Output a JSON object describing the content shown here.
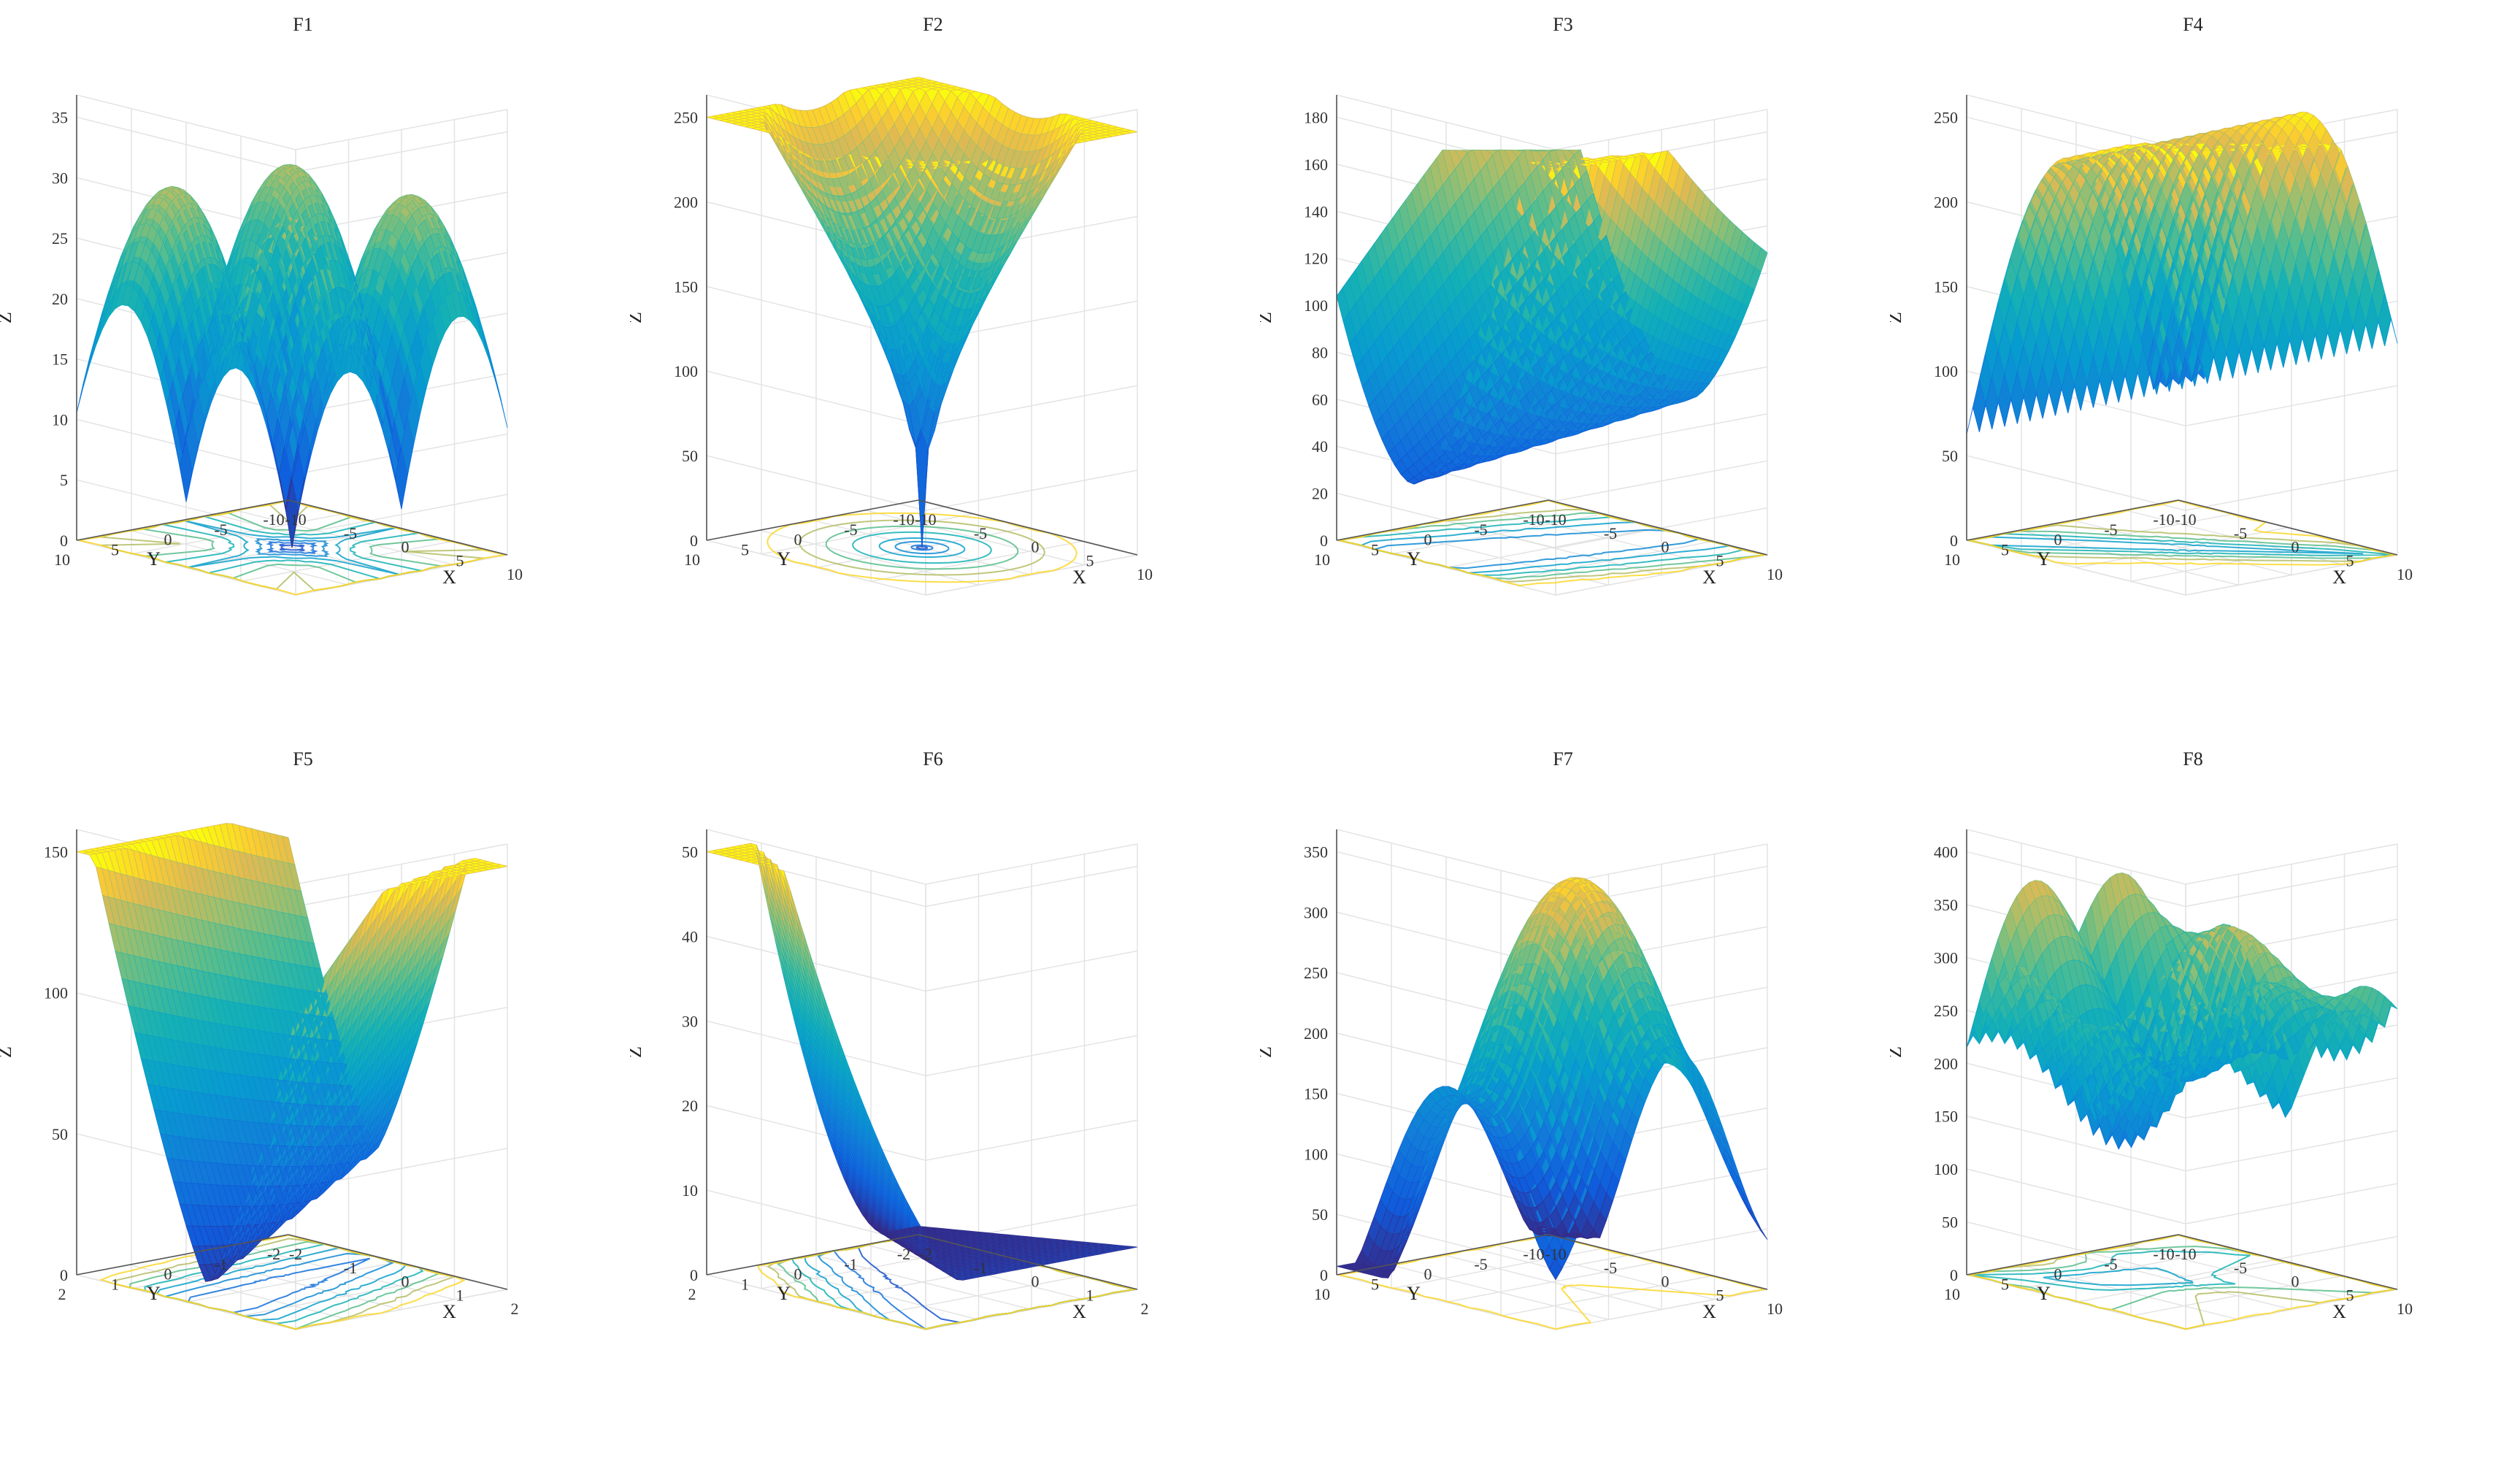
{
  "figure": {
    "columns": 4,
    "rows": 2
  },
  "chart_data": [
    {
      "type": "surface3d",
      "title": "F1",
      "xlabel": "X",
      "ylabel": "Y",
      "zlabel": "Z",
      "xticks": [
        "-10",
        "-5",
        "0",
        "5",
        "10"
      ],
      "yticks": [
        "-10",
        "-5",
        "0",
        "5",
        "10"
      ],
      "zticks": [
        "0",
        "5",
        "10",
        "15",
        "20",
        "25",
        "30",
        "35"
      ],
      "xlim": [
        -10,
        10
      ],
      "ylim": [
        -10,
        10
      ],
      "zlim": [
        0,
        38
      ],
      "contour_floor": true,
      "colormap": "parula",
      "grid": true
    },
    {
      "type": "surface3d",
      "title": "F2",
      "xlabel": "X",
      "ylabel": "Y",
      "zlabel": "Z",
      "xticks": [
        "-10",
        "-5",
        "0",
        "5",
        "10"
      ],
      "yticks": [
        "-10",
        "-5",
        "0",
        "5",
        "10"
      ],
      "zticks": [
        "0",
        "50",
        "100",
        "150",
        "200",
        "250"
      ],
      "xlim": [
        -10,
        10
      ],
      "ylim": [
        -10,
        10
      ],
      "zlim": [
        0,
        255
      ],
      "contour_floor": true,
      "colormap": "parula",
      "grid": true
    },
    {
      "type": "surface3d",
      "title": "F3",
      "xlabel": "X",
      "ylabel": "Y",
      "zlabel": "Z",
      "xticks": [
        "-10",
        "-5",
        "0",
        "5",
        "10"
      ],
      "yticks": [
        "-10",
        "-5",
        "0",
        "5",
        "10"
      ],
      "zticks": [
        "0",
        "20",
        "40",
        "60",
        "80",
        "100",
        "120",
        "140",
        "160",
        "180"
      ],
      "xlim": [
        -10,
        10
      ],
      "ylim": [
        -10,
        10
      ],
      "zlim": [
        0,
        185
      ],
      "contour_floor": true,
      "colormap": "parula",
      "grid": true
    },
    {
      "type": "surface3d",
      "title": "F4",
      "xlabel": "X",
      "ylabel": "Y",
      "zlabel": "Z",
      "xticks": [
        "-10",
        "-5",
        "0",
        "5",
        "10"
      ],
      "yticks": [
        "-10",
        "-5",
        "0",
        "5",
        "10"
      ],
      "zticks": [
        "0",
        "50",
        "100",
        "150",
        "200",
        "250"
      ],
      "xlim": [
        -10,
        10
      ],
      "ylim": [
        -10,
        10
      ],
      "zlim": [
        0,
        270
      ],
      "contour_floor": true,
      "colormap": "parula",
      "grid": true
    },
    {
      "type": "surface3d",
      "title": "F5",
      "xlabel": "X",
      "ylabel": "Y",
      "zlabel": "Z",
      "xticks": [
        "-2",
        "-1",
        "0",
        "1",
        "2"
      ],
      "yticks": [
        "-2",
        "-1",
        "0",
        "1",
        "2"
      ],
      "zticks": [
        "0",
        "50",
        "100",
        "150"
      ],
      "xlim": [
        -2,
        2
      ],
      "ylim": [
        -2,
        2
      ],
      "zlim": [
        0,
        155
      ],
      "contour_floor": true,
      "colormap": "parula",
      "grid": true
    },
    {
      "type": "surface3d",
      "title": "F6",
      "xlabel": "X",
      "ylabel": "Y",
      "zlabel": "Z",
      "xticks": [
        "-2",
        "-1",
        "0",
        "1",
        "2"
      ],
      "yticks": [
        "-2",
        "-1",
        "0",
        "1",
        "2"
      ],
      "zticks": [
        "0",
        "10",
        "20",
        "30",
        "40",
        "50"
      ],
      "xlim": [
        -2,
        2
      ],
      "ylim": [
        -2,
        2
      ],
      "zlim": [
        0,
        52
      ],
      "contour_floor": true,
      "colormap": "parula",
      "grid": true
    },
    {
      "type": "surface3d",
      "title": "F7",
      "xlabel": "X",
      "ylabel": "Y",
      "zlabel": "Z",
      "xticks": [
        "-10",
        "-5",
        "0",
        "5",
        "10"
      ],
      "yticks": [
        "-10",
        "-5",
        "0",
        "5",
        "10"
      ],
      "zticks": [
        "0",
        "50",
        "100",
        "150",
        "200",
        "250",
        "300",
        "350"
      ],
      "xlim": [
        -10,
        10
      ],
      "ylim": [
        -10,
        10
      ],
      "zlim": [
        0,
        360
      ],
      "contour_floor": true,
      "colormap": "parula",
      "grid": true
    },
    {
      "type": "surface3d",
      "title": "F8",
      "xlabel": "X",
      "ylabel": "Y",
      "zlabel": "Z",
      "xticks": [
        "-10",
        "-5",
        "0",
        "5",
        "10"
      ],
      "yticks": [
        "-10",
        "-5",
        "0",
        "5",
        "10"
      ],
      "zticks": [
        "0",
        "50",
        "100",
        "150",
        "200",
        "250",
        "300",
        "350",
        "400"
      ],
      "xlim": [
        -10,
        10
      ],
      "ylim": [
        -10,
        10
      ],
      "zlim": [
        0,
        440
      ],
      "contour_floor": true,
      "colormap": "parula",
      "grid": true
    }
  ]
}
